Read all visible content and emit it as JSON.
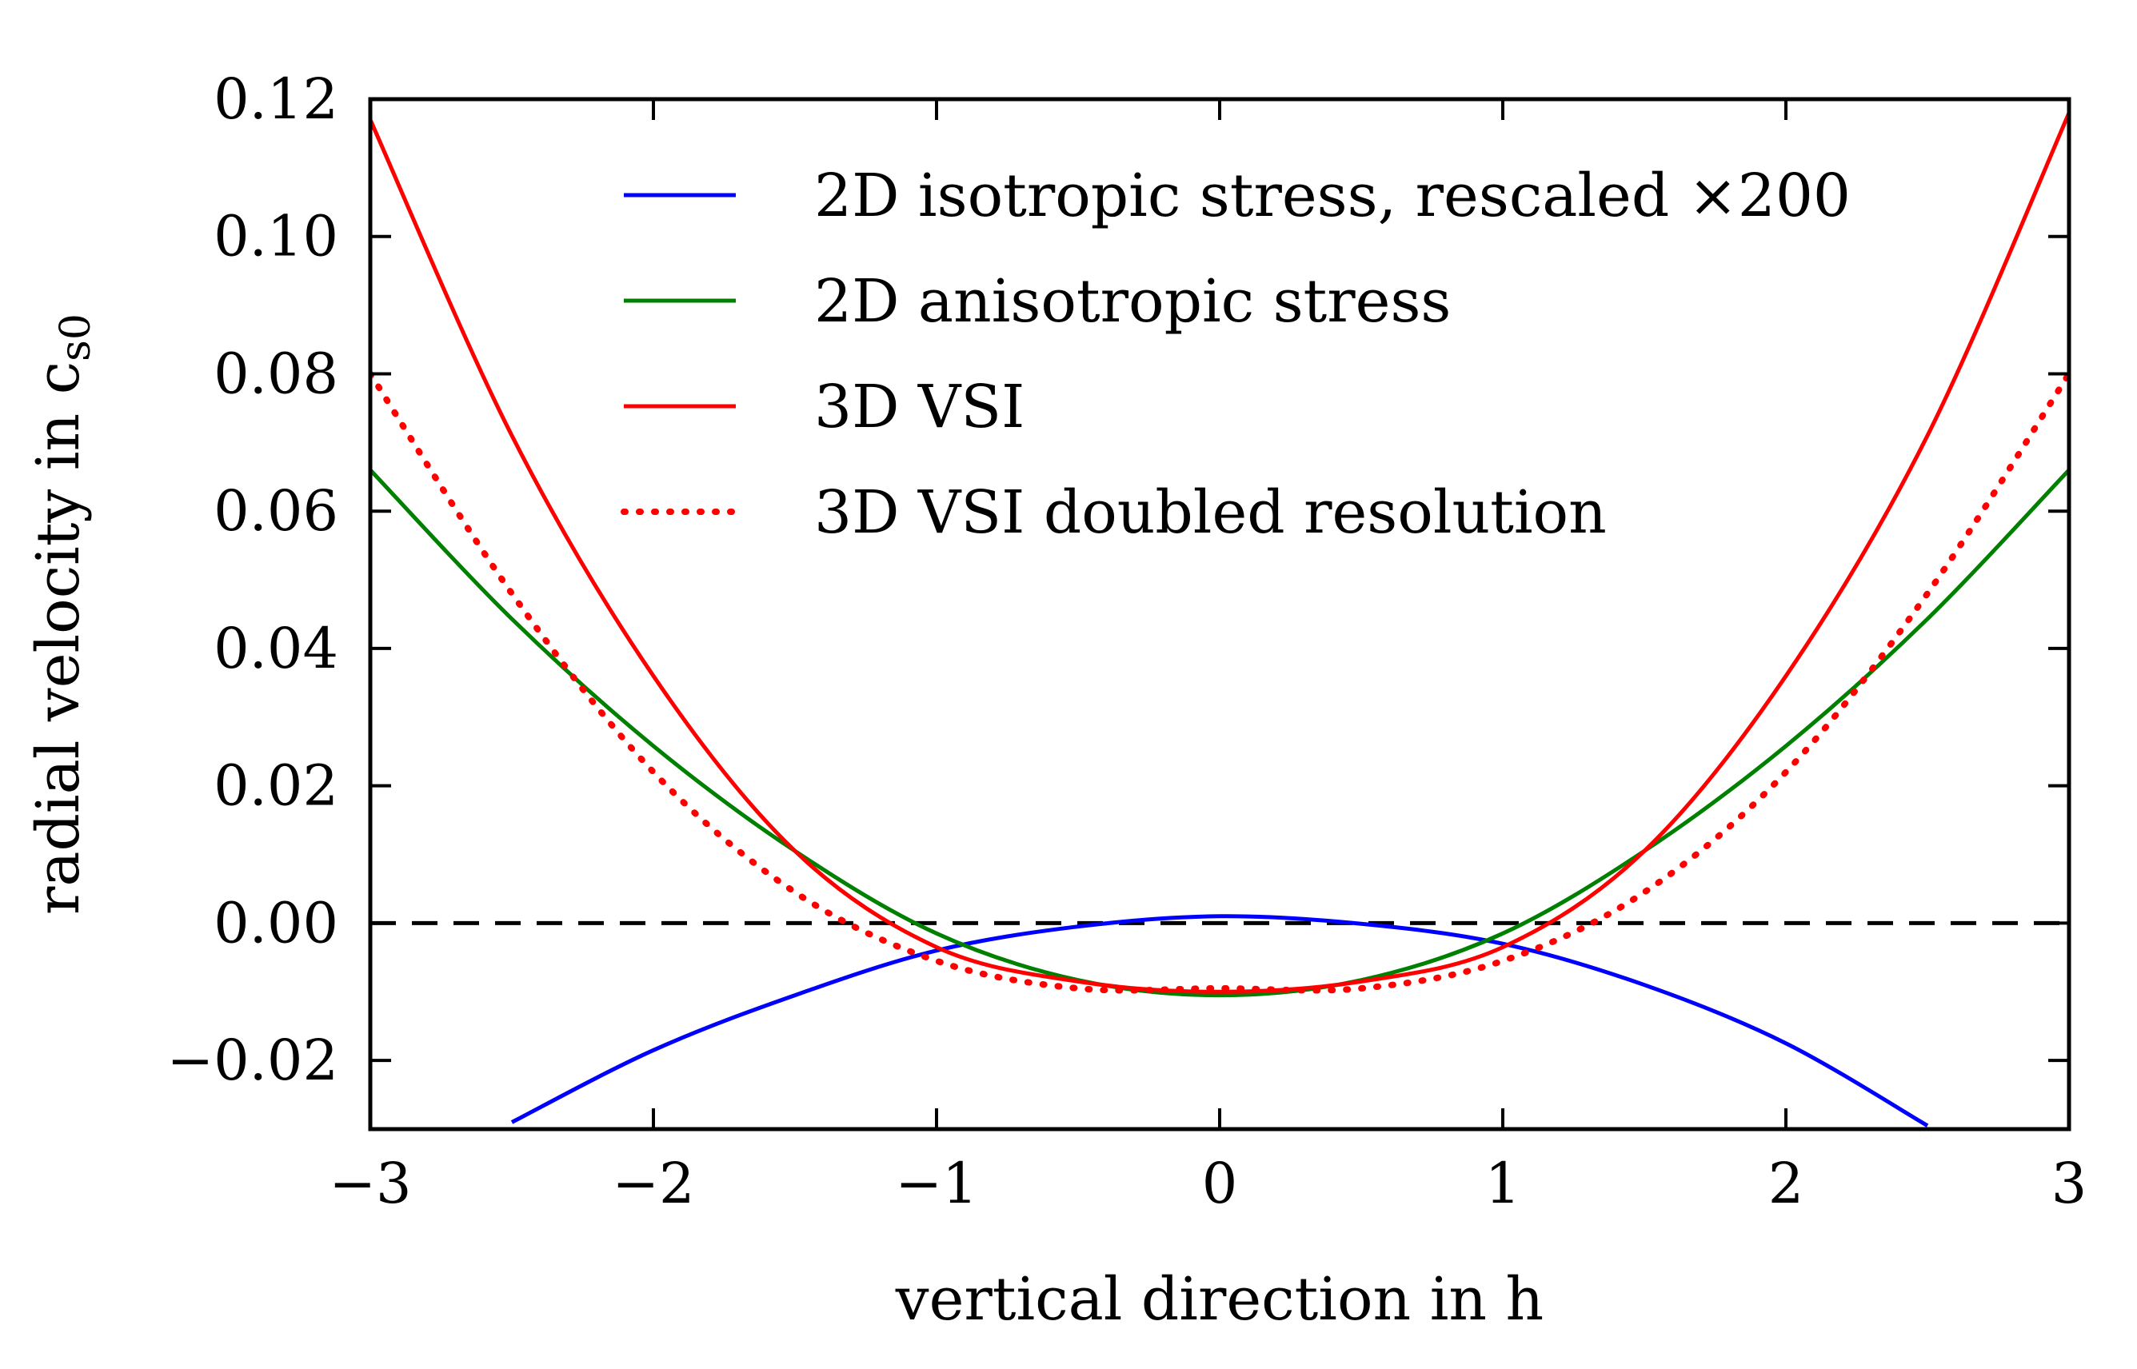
{
  "chart_data": {
    "type": "line",
    "xlabel": "vertical direction in h",
    "ylabel": "radial velocity in c",
    "ylabel_subscript": "s0",
    "xlim": [
      -3,
      3
    ],
    "ylim": [
      -0.03,
      0.12
    ],
    "xticks": [
      -3,
      -2,
      -1,
      0,
      1,
      2,
      3
    ],
    "xtick_labels": [
      "−3",
      "−2",
      "−1",
      "0",
      "1",
      "2",
      "3"
    ],
    "yticks": [
      -0.02,
      0.0,
      0.02,
      0.04,
      0.06,
      0.08,
      0.1,
      0.12
    ],
    "ytick_labels": [
      "−0.02",
      "0.00",
      "0.02",
      "0.04",
      "0.06",
      "0.08",
      "0.10",
      "0.12"
    ],
    "grid": false,
    "legend_position": "top-center",
    "zero_line": {
      "y": 0,
      "style": "dashed",
      "color": "#000000"
    },
    "series": [
      {
        "name": "2D isotropic stress, rescaled ×200",
        "color": "#0000ff",
        "style": "solid",
        "x": [
          -2.5,
          -2.0,
          -1.5,
          -1.0,
          -0.5,
          0.0,
          0.5,
          1.0,
          1.5,
          2.0,
          2.5
        ],
        "y": [
          -0.029,
          -0.0185,
          -0.0105,
          -0.004,
          -0.0005,
          0.001,
          -0.0001,
          -0.003,
          -0.009,
          -0.0175,
          -0.0295
        ]
      },
      {
        "name": "2D anisotropic stress",
        "color": "#008000",
        "style": "solid",
        "x": [
          -3.0,
          -2.5,
          -2.0,
          -1.5,
          -1.0,
          -0.5,
          0.0,
          0.5,
          1.0,
          1.5,
          2.0,
          2.5,
          3.0
        ],
        "y": [
          0.066,
          0.0443,
          0.0258,
          0.0105,
          -0.0015,
          -0.0083,
          -0.0105,
          -0.0083,
          -0.0015,
          0.0105,
          0.0258,
          0.0443,
          0.066
        ]
      },
      {
        "name": "3D VSI",
        "color": "#ff0000",
        "style": "solid",
        "x": [
          -3.0,
          -2.5,
          -2.0,
          -1.5,
          -1.0,
          -0.5,
          0.0,
          0.5,
          1.0,
          1.5,
          2.0,
          2.5,
          3.0
        ],
        "y": [
          0.117,
          0.071,
          0.036,
          0.0105,
          -0.0035,
          -0.0085,
          -0.01,
          -0.0085,
          -0.0035,
          0.0105,
          0.036,
          0.071,
          0.118
        ]
      },
      {
        "name": "3D VSI doubled resolution",
        "color": "#ff0000",
        "style": "dotted",
        "x": [
          -3.0,
          -2.5,
          -2.0,
          -1.5,
          -1.0,
          -0.5,
          0.0,
          0.5,
          1.0,
          1.5,
          2.0,
          2.5,
          3.0
        ],
        "y": [
          0.08,
          0.048,
          0.022,
          0.0045,
          -0.0055,
          -0.0095,
          -0.0095,
          -0.0095,
          -0.0055,
          0.0045,
          0.022,
          0.048,
          0.08
        ]
      }
    ]
  }
}
